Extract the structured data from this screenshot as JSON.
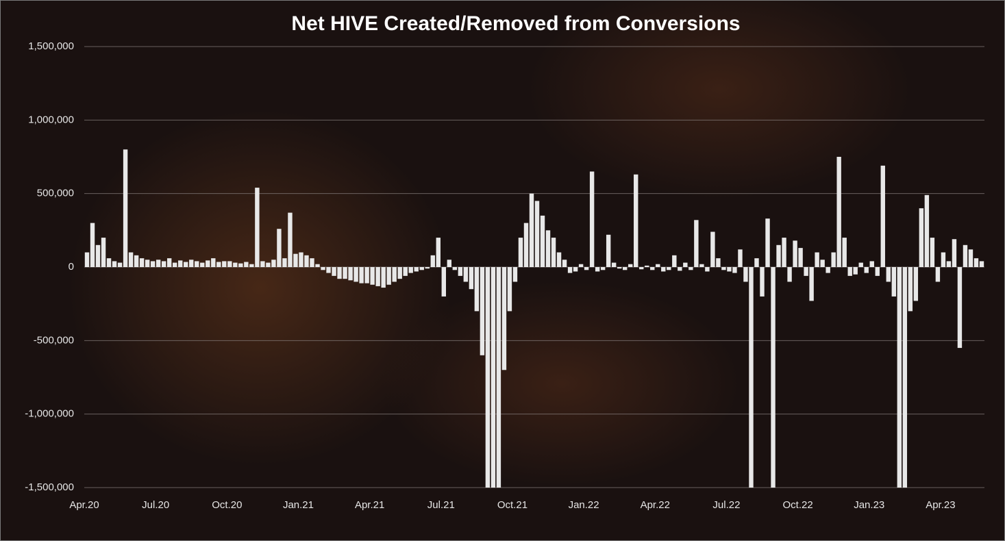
{
  "chart_data": {
    "type": "bar",
    "title": "Net HIVE Created/Removed from Conversions",
    "categories": [
      "Apr.20",
      null,
      null,
      null,
      null,
      null,
      null,
      null,
      null,
      null,
      null,
      null,
      null,
      "Jul.20",
      null,
      null,
      null,
      null,
      null,
      null,
      null,
      null,
      null,
      null,
      null,
      null,
      "Oct.20",
      null,
      null,
      null,
      null,
      null,
      null,
      null,
      null,
      null,
      null,
      null,
      null,
      "Jan.21",
      null,
      null,
      null,
      null,
      null,
      null,
      null,
      null,
      null,
      null,
      null,
      null,
      "Apr.21",
      null,
      null,
      null,
      null,
      null,
      null,
      null,
      null,
      null,
      null,
      null,
      null,
      "Jul.21",
      null,
      null,
      null,
      null,
      null,
      null,
      null,
      null,
      null,
      null,
      null,
      null,
      "Oct.21",
      null,
      null,
      null,
      null,
      null,
      null,
      null,
      null,
      null,
      null,
      null,
      null,
      "Jan.22",
      null,
      null,
      null,
      null,
      null,
      null,
      null,
      null,
      null,
      null,
      null,
      null,
      "Apr.22",
      null,
      null,
      null,
      null,
      null,
      null,
      null,
      null,
      null,
      null,
      null,
      null,
      "Jul.22",
      null,
      null,
      null,
      null,
      null,
      null,
      null,
      null,
      null,
      null,
      null,
      null,
      "Oct.22",
      null,
      null,
      null,
      null,
      null,
      null,
      null,
      null,
      null,
      null,
      null,
      null,
      "Jan.23",
      null,
      null,
      null,
      null,
      null,
      null,
      null,
      null,
      null,
      null,
      null,
      null,
      "Apr.23",
      null,
      null,
      null,
      null,
      null,
      null,
      null
    ],
    "values": [
      100000,
      300000,
      150000,
      200000,
      60000,
      40000,
      30000,
      800000,
      100000,
      80000,
      60000,
      50000,
      40000,
      50000,
      40000,
      60000,
      30000,
      45000,
      35000,
      50000,
      40000,
      30000,
      45000,
      60000,
      35000,
      40000,
      40000,
      30000,
      25000,
      35000,
      20000,
      540000,
      40000,
      30000,
      50000,
      260000,
      60000,
      370000,
      90000,
      100000,
      80000,
      60000,
      20000,
      -20000,
      -40000,
      -60000,
      -80000,
      -80000,
      -90000,
      -100000,
      -110000,
      -110000,
      -120000,
      -130000,
      -140000,
      -120000,
      -100000,
      -80000,
      -60000,
      -40000,
      -30000,
      -20000,
      -10000,
      80000,
      200000,
      -200000,
      50000,
      -20000,
      -60000,
      -100000,
      -150000,
      -300000,
      -600000,
      -1500000,
      -1500000,
      -1500000,
      -700000,
      -300000,
      -100000,
      200000,
      300000,
      500000,
      450000,
      350000,
      250000,
      200000,
      100000,
      50000,
      -40000,
      -30000,
      20000,
      -20000,
      650000,
      -30000,
      -20000,
      220000,
      30000,
      -10000,
      -20000,
      20000,
      630000,
      -15000,
      10000,
      -20000,
      20000,
      -30000,
      -20000,
      80000,
      -25000,
      30000,
      -20000,
      320000,
      20000,
      -30000,
      240000,
      60000,
      -20000,
      -30000,
      -40000,
      120000,
      -100000,
      -1500000,
      60000,
      -200000,
      330000,
      -1500000,
      150000,
      200000,
      -100000,
      180000,
      130000,
      -60000,
      -230000,
      100000,
      50000,
      -40000,
      100000,
      750000,
      200000,
      -60000,
      -50000,
      30000,
      -40000,
      40000,
      -60000,
      690000,
      -100000,
      -200000,
      -1500000,
      -1500000,
      -300000,
      -230000,
      400000,
      490000,
      200000,
      -100000,
      100000,
      40000,
      190000,
      -550000,
      150000,
      120000,
      60000,
      40000
    ],
    "color": "#e8e8e8",
    "ylim": [
      -1500000,
      1500000
    ],
    "yticks": [
      {
        "value": -1500000,
        "label": "-1,500,000"
      },
      {
        "value": -1000000,
        "label": "-1,000,000"
      },
      {
        "value": -500000,
        "label": "-500,000"
      },
      0,
      {
        "value": 500000,
        "label": "500,000"
      },
      {
        "value": 1000000,
        "label": "1,000,000"
      },
      {
        "value": 1500000,
        "label": "1,500,000"
      }
    ],
    "grid": true
  }
}
